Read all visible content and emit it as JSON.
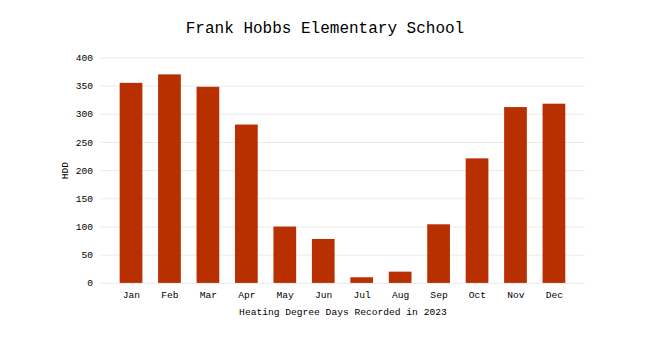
{
  "chart_data": {
    "type": "bar",
    "title": "Frank Hobbs Elementary School",
    "xlabel": "Heating Degree Days Recorded in 2023",
    "ylabel": "HDD",
    "categories": [
      "Jan",
      "Feb",
      "Mar",
      "Apr",
      "May",
      "Jun",
      "Jul",
      "Aug",
      "Sep",
      "Oct",
      "Nov",
      "Dec"
    ],
    "values": [
      355,
      370,
      348,
      281,
      100,
      78,
      10,
      20,
      104,
      221,
      312,
      318
    ],
    "color": "#b83000",
    "ylim": [
      0,
      400
    ],
    "yticks": [
      0,
      50,
      100,
      150,
      200,
      250,
      300,
      350,
      400
    ],
    "grid": true
  }
}
